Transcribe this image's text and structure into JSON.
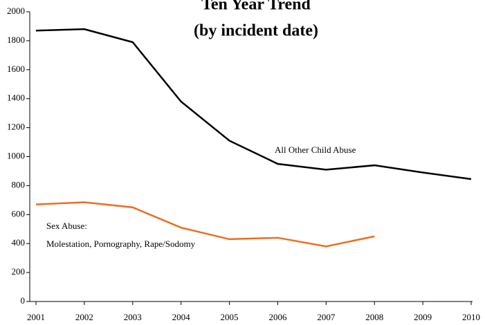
{
  "chart_data": {
    "type": "line",
    "title": "Ten Year Trend",
    "subtitle": "(by incident date)",
    "x": [
      2001,
      2002,
      2003,
      2004,
      2005,
      2006,
      2007,
      2008,
      2009,
      2010
    ],
    "xlim": [
      2001,
      2010
    ],
    "xticks": [
      2001,
      2002,
      2003,
      2004,
      2005,
      2006,
      2007,
      2008,
      2009,
      2010
    ],
    "ylim": [
      0,
      2000
    ],
    "yticks": [
      0,
      200,
      400,
      600,
      800,
      1000,
      1200,
      1400,
      1600,
      1800,
      2000
    ],
    "grid": false,
    "series": [
      {
        "color": "#000000",
        "values": [
          1870,
          1880,
          1790,
          1380,
          1110,
          950,
          910,
          940,
          890,
          845
        ]
      },
      {
        "color": "#f26b1d",
        "values": [
          670,
          685,
          650,
          510,
          430,
          440,
          380,
          450,
          null,
          null
        ]
      }
    ],
    "annotations": [
      "All Other Child Abuse",
      "Sex Abuse:",
      "Molestation, Pornography, Rape/Sodomy"
    ]
  }
}
